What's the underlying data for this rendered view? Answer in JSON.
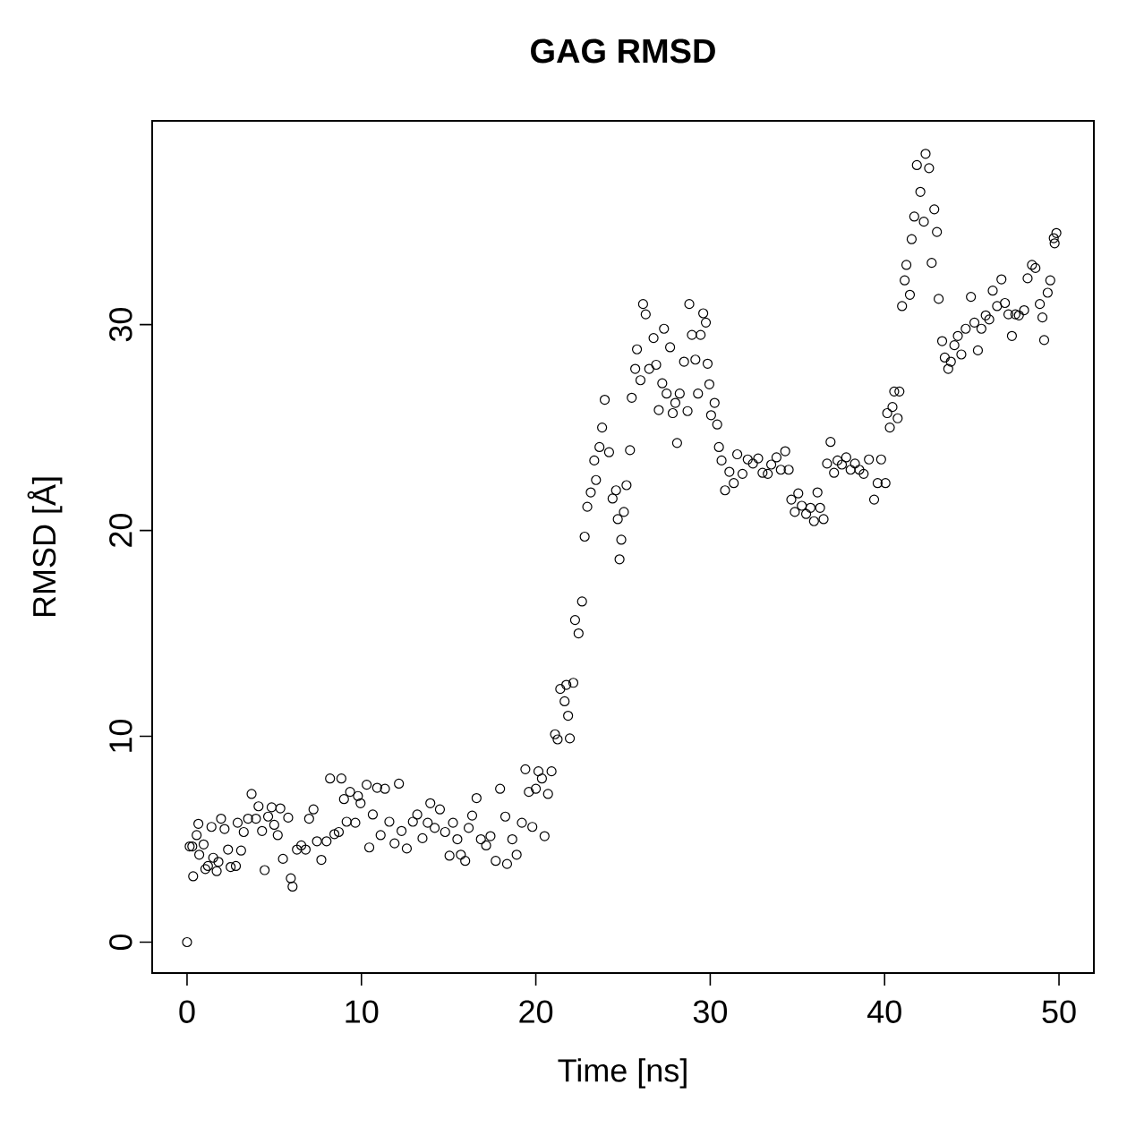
{
  "chart_data": {
    "type": "scatter",
    "title": "GAG RMSD",
    "xlabel": "Time [ns]",
    "ylabel": "RMSD [Å]",
    "x": [
      0,
      0.15,
      0.3,
      0.35,
      0.55,
      0.65,
      0.7,
      0.95,
      1.05,
      1.2,
      1.4,
      1.5,
      1.7,
      1.8,
      1.95,
      2.15,
      2.35,
      2.5,
      2.8,
      2.9,
      3.1,
      3.25,
      3.5,
      3.7,
      3.95,
      4.1,
      4.3,
      4.45,
      4.65,
      4.85,
      5.0,
      5.2,
      5.35,
      5.5,
      5.8,
      5.95,
      6.05,
      6.3,
      6.55,
      6.8,
      7.0,
      7.25,
      7.45,
      7.7,
      8.0,
      8.2,
      8.45,
      8.7,
      8.85,
      9.0,
      9.15,
      9.35,
      9.65,
      9.8,
      9.95,
      10.3,
      10.45,
      10.65,
      10.9,
      11.1,
      11.35,
      11.6,
      11.9,
      12.15,
      12.3,
      12.6,
      12.95,
      13.2,
      13.5,
      13.8,
      13.95,
      14.2,
      14.5,
      14.8,
      15.05,
      15.25,
      15.5,
      15.7,
      15.95,
      16.15,
      16.35,
      16.6,
      16.85,
      17.15,
      17.4,
      17.7,
      17.95,
      18.25,
      18.35,
      18.65,
      18.9,
      19.2,
      19.4,
      19.6,
      19.8,
      20.0,
      20.15,
      20.35,
      20.5,
      20.7,
      20.9,
      21.1,
      21.25,
      21.4,
      21.65,
      21.75,
      21.85,
      21.95,
      22.15,
      22.25,
      22.45,
      22.65,
      22.8,
      22.95,
      23.15,
      23.35,
      23.45,
      23.65,
      23.8,
      23.95,
      24.2,
      24.4,
      24.6,
      24.7,
      24.8,
      24.9,
      25.05,
      25.2,
      25.4,
      25.5,
      25.7,
      25.8,
      26.0,
      26.15,
      26.3,
      26.5,
      26.75,
      26.9,
      27.05,
      27.25,
      27.35,
      27.5,
      27.7,
      27.85,
      28.0,
      28.1,
      28.25,
      28.5,
      28.7,
      28.8,
      28.95,
      29.15,
      29.3,
      29.45,
      29.6,
      29.75,
      29.85,
      29.95,
      30.05,
      30.25,
      30.4,
      30.5,
      30.65,
      30.85,
      31.1,
      31.35,
      31.55,
      31.85,
      32.15,
      32.45,
      32.75,
      33.0,
      33.3,
      33.5,
      33.8,
      34.05,
      34.3,
      34.5,
      34.65,
      34.85,
      35.05,
      35.25,
      35.5,
      35.75,
      35.95,
      36.15,
      36.3,
      36.5,
      36.7,
      36.9,
      37.1,
      37.3,
      37.55,
      37.8,
      38.05,
      38.3,
      38.55,
      38.8,
      39.1,
      39.4,
      39.6,
      39.8,
      40.05,
      40.15,
      40.3,
      40.45,
      40.55,
      40.75,
      40.85,
      41.0,
      41.15,
      41.25,
      41.45,
      41.55,
      41.7,
      41.85,
      42.05,
      42.25,
      42.35,
      42.55,
      42.7,
      42.85,
      43.0,
      43.1,
      43.3,
      43.45,
      43.65,
      43.8,
      44.0,
      44.2,
      44.4,
      44.65,
      44.95,
      45.15,
      45.35,
      45.55,
      45.8,
      46.0,
      46.2,
      46.45,
      46.7,
      46.9,
      47.1,
      47.3,
      47.5,
      47.7,
      48.0,
      48.2,
      48.45,
      48.65,
      48.9,
      49.05,
      49.15,
      49.35,
      49.5,
      49.7,
      49.75,
      49.85
    ],
    "values": [
      0,
      4.65,
      4.65,
      3.2,
      5.2,
      5.75,
      4.25,
      4.75,
      3.55,
      3.7,
      5.6,
      4.1,
      3.45,
      3.9,
      6.0,
      5.5,
      4.5,
      3.65,
      3.7,
      5.8,
      4.45,
      5.35,
      6.0,
      7.2,
      6.0,
      6.6,
      5.4,
      3.5,
      6.1,
      6.55,
      5.7,
      5.2,
      6.5,
      4.05,
      6.05,
      3.1,
      2.7,
      4.5,
      4.7,
      4.5,
      6.0,
      6.45,
      4.9,
      4.0,
      4.9,
      7.95,
      5.25,
      5.35,
      7.95,
      6.95,
      5.85,
      7.3,
      5.8,
      7.1,
      6.75,
      7.65,
      4.6,
      6.2,
      7.5,
      5.2,
      7.45,
      5.85,
      4.8,
      7.7,
      5.4,
      4.55,
      5.85,
      6.2,
      5.05,
      5.8,
      6.75,
      5.55,
      6.45,
      5.35,
      4.2,
      5.8,
      5.0,
      4.25,
      3.95,
      5.55,
      6.15,
      7.0,
      5.0,
      4.7,
      5.15,
      3.95,
      7.45,
      6.1,
      3.8,
      5.0,
      4.25,
      5.8,
      8.4,
      7.3,
      5.6,
      7.45,
      8.3,
      7.95,
      5.15,
      7.2,
      8.3,
      10.1,
      9.85,
      12.3,
      11.7,
      12.5,
      11.0,
      9.9,
      12.6,
      15.65,
      15.0,
      16.55,
      19.7,
      21.15,
      21.85,
      23.4,
      22.45,
      24.05,
      25.0,
      26.35,
      23.8,
      21.55,
      21.95,
      20.55,
      18.6,
      19.55,
      20.9,
      22.2,
      23.9,
      26.45,
      27.85,
      28.8,
      27.3,
      31.0,
      30.5,
      27.85,
      29.35,
      28.05,
      25.85,
      27.15,
      29.8,
      26.65,
      28.9,
      25.7,
      26.2,
      24.25,
      26.65,
      28.2,
      25.8,
      31.0,
      29.5,
      28.3,
      26.65,
      29.5,
      30.55,
      30.1,
      28.1,
      27.1,
      25.6,
      26.2,
      25.15,
      24.05,
      23.4,
      21.95,
      22.85,
      22.3,
      23.7,
      22.75,
      23.45,
      23.25,
      23.5,
      22.8,
      22.75,
      23.2,
      23.55,
      22.95,
      23.85,
      22.95,
      21.5,
      20.9,
      21.8,
      21.2,
      20.8,
      21.1,
      20.45,
      21.85,
      21.1,
      20.55,
      23.25,
      24.3,
      22.8,
      23.4,
      23.2,
      23.55,
      22.95,
      23.25,
      22.95,
      22.75,
      23.45,
      21.5,
      22.3,
      23.45,
      22.3,
      25.7,
      25.0,
      26.0,
      26.75,
      25.45,
      26.75,
      30.9,
      32.15,
      32.9,
      31.45,
      34.15,
      35.25,
      37.75,
      36.45,
      35.0,
      38.3,
      37.6,
      33.0,
      35.6,
      34.5,
      31.25,
      29.2,
      28.4,
      27.85,
      28.2,
      29.0,
      29.45,
      28.55,
      29.8,
      31.35,
      30.1,
      28.75,
      29.8,
      30.45,
      30.25,
      31.65,
      30.9,
      32.2,
      31.05,
      30.5,
      29.45,
      30.5,
      30.45,
      30.7,
      32.25,
      32.9,
      32.75,
      31.0,
      30.35,
      29.25,
      31.55,
      32.15,
      34.2,
      33.95,
      34.45
    ],
    "color": "#000000",
    "marker": "circle",
    "xlim": [
      -2,
      52
    ],
    "ylim": [
      -1.5,
      39.9
    ],
    "xticks": [
      0,
      10,
      20,
      30,
      40,
      50
    ],
    "yticks": [
      0,
      10,
      20,
      30
    ]
  }
}
